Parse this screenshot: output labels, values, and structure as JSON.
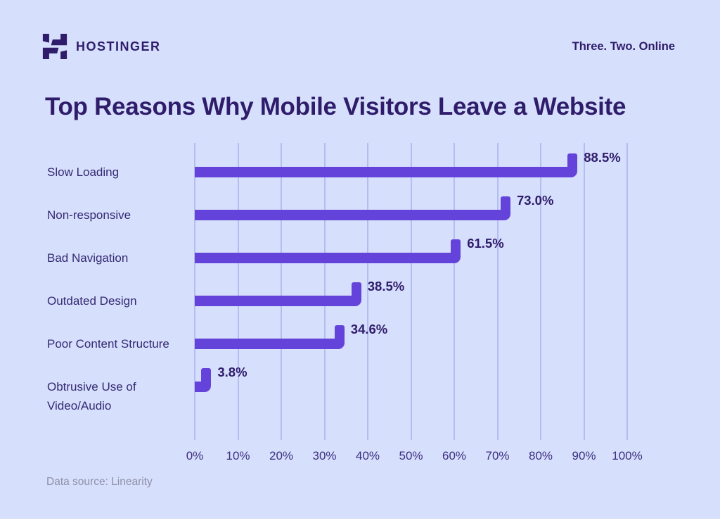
{
  "header": {
    "brand": "HOSTINGER",
    "tagline": "Three. Two. Online",
    "logo_icon": "hostinger-h-logo"
  },
  "chart_data": {
    "type": "bar",
    "orientation": "horizontal",
    "title": "Top Reasons Why Mobile Visitors Leave a Website",
    "categories": [
      "Slow Loading",
      "Non-responsive",
      "Bad Navigation",
      "Outdated Design",
      "Poor Content Structure",
      "Obtrusive Use of\nVideo/Audio"
    ],
    "values": [
      88.5,
      73.0,
      61.5,
      38.5,
      34.6,
      3.8
    ],
    "value_labels": [
      "88.5%",
      "73.0%",
      "61.5%",
      "38.5%",
      "34.6%",
      "3.8%"
    ],
    "x_ticks": [
      "0%",
      "10%",
      "20%",
      "30%",
      "40%",
      "50%",
      "60%",
      "70%",
      "80%",
      "90%",
      "100%"
    ],
    "xlim": [
      0,
      100
    ],
    "xlabel": "",
    "ylabel": "",
    "grid": "vertical",
    "legend": "none"
  },
  "footer": {
    "source": "Data source: Linearity"
  },
  "colors": {
    "background": "#D6DFFC",
    "bar": "#6443DB",
    "dark_text": "#2F1C6A",
    "gridline": "#B4BDF2",
    "muted_text": "#8F90A6"
  }
}
